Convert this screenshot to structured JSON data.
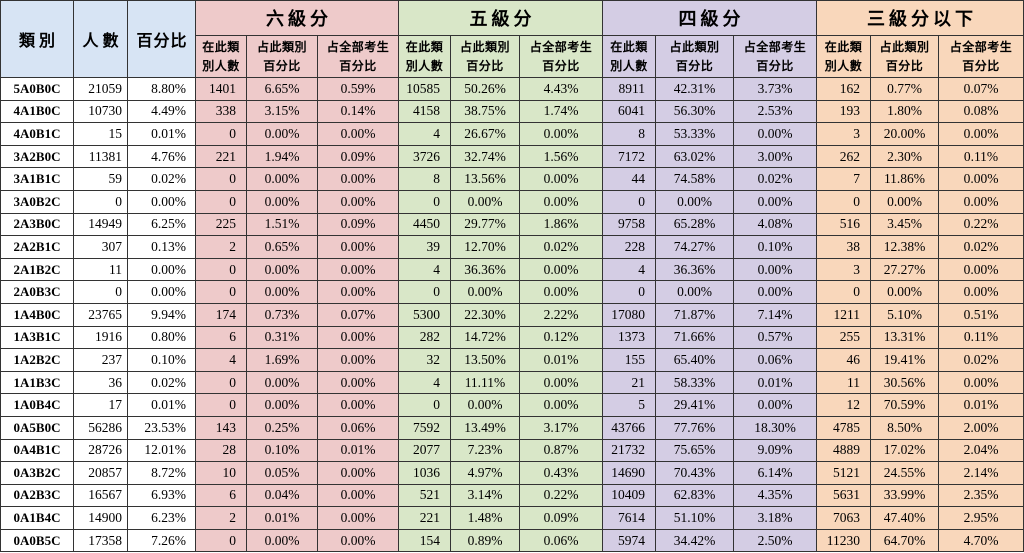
{
  "colors": {
    "header": "#d7e4f4",
    "groups": [
      "#eecaca",
      "#d9e7c8",
      "#d4cde4",
      "#f9d7bb"
    ],
    "grid_line": "#333333"
  },
  "chart_data": {
    "type": "table",
    "column_headers": {
      "category": "類別",
      "count": "人數",
      "percent": "百分比"
    },
    "groups": [
      "六級分",
      "五級分",
      "四級分",
      "三級分以下"
    ],
    "sub_headers": [
      "在此類\n別人數",
      "占此類別\n百分比",
      "占全部考生\n百分比"
    ],
    "rows": [
      {
        "category": "5A0B0C",
        "count": 21059,
        "percent": "8.80%",
        "groups": [
          [
            1401,
            "6.65%",
            "0.59%"
          ],
          [
            10585,
            "50.26%",
            "4.43%"
          ],
          [
            8911,
            "42.31%",
            "3.73%"
          ],
          [
            162,
            "0.77%",
            "0.07%"
          ]
        ]
      },
      {
        "category": "4A1B0C",
        "count": 10730,
        "percent": "4.49%",
        "groups": [
          [
            338,
            "3.15%",
            "0.14%"
          ],
          [
            4158,
            "38.75%",
            "1.74%"
          ],
          [
            6041,
            "56.30%",
            "2.53%"
          ],
          [
            193,
            "1.80%",
            "0.08%"
          ]
        ]
      },
      {
        "category": "4A0B1C",
        "count": 15,
        "percent": "0.01%",
        "groups": [
          [
            0,
            "0.00%",
            "0.00%"
          ],
          [
            4,
            "26.67%",
            "0.00%"
          ],
          [
            8,
            "53.33%",
            "0.00%"
          ],
          [
            3,
            "20.00%",
            "0.00%"
          ]
        ]
      },
      {
        "category": "3A2B0C",
        "count": 11381,
        "percent": "4.76%",
        "groups": [
          [
            221,
            "1.94%",
            "0.09%"
          ],
          [
            3726,
            "32.74%",
            "1.56%"
          ],
          [
            7172,
            "63.02%",
            "3.00%"
          ],
          [
            262,
            "2.30%",
            "0.11%"
          ]
        ]
      },
      {
        "category": "3A1B1C",
        "count": 59,
        "percent": "0.02%",
        "groups": [
          [
            0,
            "0.00%",
            "0.00%"
          ],
          [
            8,
            "13.56%",
            "0.00%"
          ],
          [
            44,
            "74.58%",
            "0.02%"
          ],
          [
            7,
            "11.86%",
            "0.00%"
          ]
        ]
      },
      {
        "category": "3A0B2C",
        "count": 0,
        "percent": "0.00%",
        "groups": [
          [
            0,
            "0.00%",
            "0.00%"
          ],
          [
            0,
            "0.00%",
            "0.00%"
          ],
          [
            0,
            "0.00%",
            "0.00%"
          ],
          [
            0,
            "0.00%",
            "0.00%"
          ]
        ]
      },
      {
        "category": "2A3B0C",
        "count": 14949,
        "percent": "6.25%",
        "groups": [
          [
            225,
            "1.51%",
            "0.09%"
          ],
          [
            4450,
            "29.77%",
            "1.86%"
          ],
          [
            9758,
            "65.28%",
            "4.08%"
          ],
          [
            516,
            "3.45%",
            "0.22%"
          ]
        ]
      },
      {
        "category": "2A2B1C",
        "count": 307,
        "percent": "0.13%",
        "groups": [
          [
            2,
            "0.65%",
            "0.00%"
          ],
          [
            39,
            "12.70%",
            "0.02%"
          ],
          [
            228,
            "74.27%",
            "0.10%"
          ],
          [
            38,
            "12.38%",
            "0.02%"
          ]
        ]
      },
      {
        "category": "2A1B2C",
        "count": 11,
        "percent": "0.00%",
        "groups": [
          [
            0,
            "0.00%",
            "0.00%"
          ],
          [
            4,
            "36.36%",
            "0.00%"
          ],
          [
            4,
            "36.36%",
            "0.00%"
          ],
          [
            3,
            "27.27%",
            "0.00%"
          ]
        ]
      },
      {
        "category": "2A0B3C",
        "count": 0,
        "percent": "0.00%",
        "groups": [
          [
            0,
            "0.00%",
            "0.00%"
          ],
          [
            0,
            "0.00%",
            "0.00%"
          ],
          [
            0,
            "0.00%",
            "0.00%"
          ],
          [
            0,
            "0.00%",
            "0.00%"
          ]
        ]
      },
      {
        "category": "1A4B0C",
        "count": 23765,
        "percent": "9.94%",
        "groups": [
          [
            174,
            "0.73%",
            "0.07%"
          ],
          [
            5300,
            "22.30%",
            "2.22%"
          ],
          [
            17080,
            "71.87%",
            "7.14%"
          ],
          [
            1211,
            "5.10%",
            "0.51%"
          ]
        ]
      },
      {
        "category": "1A3B1C",
        "count": 1916,
        "percent": "0.80%",
        "groups": [
          [
            6,
            "0.31%",
            "0.00%"
          ],
          [
            282,
            "14.72%",
            "0.12%"
          ],
          [
            1373,
            "71.66%",
            "0.57%"
          ],
          [
            255,
            "13.31%",
            "0.11%"
          ]
        ]
      },
      {
        "category": "1A2B2C",
        "count": 237,
        "percent": "0.10%",
        "groups": [
          [
            4,
            "1.69%",
            "0.00%"
          ],
          [
            32,
            "13.50%",
            "0.01%"
          ],
          [
            155,
            "65.40%",
            "0.06%"
          ],
          [
            46,
            "19.41%",
            "0.02%"
          ]
        ]
      },
      {
        "category": "1A1B3C",
        "count": 36,
        "percent": "0.02%",
        "groups": [
          [
            0,
            "0.00%",
            "0.00%"
          ],
          [
            4,
            "11.11%",
            "0.00%"
          ],
          [
            21,
            "58.33%",
            "0.01%"
          ],
          [
            11,
            "30.56%",
            "0.00%"
          ]
        ]
      },
      {
        "category": "1A0B4C",
        "count": 17,
        "percent": "0.01%",
        "groups": [
          [
            0,
            "0.00%",
            "0.00%"
          ],
          [
            0,
            "0.00%",
            "0.00%"
          ],
          [
            5,
            "29.41%",
            "0.00%"
          ],
          [
            12,
            "70.59%",
            "0.01%"
          ]
        ]
      },
      {
        "category": "0A5B0C",
        "count": 56286,
        "percent": "23.53%",
        "groups": [
          [
            143,
            "0.25%",
            "0.06%"
          ],
          [
            7592,
            "13.49%",
            "3.17%"
          ],
          [
            43766,
            "77.76%",
            "18.30%"
          ],
          [
            4785,
            "8.50%",
            "2.00%"
          ]
        ]
      },
      {
        "category": "0A4B1C",
        "count": 28726,
        "percent": "12.01%",
        "groups": [
          [
            28,
            "0.10%",
            "0.01%"
          ],
          [
            2077,
            "7.23%",
            "0.87%"
          ],
          [
            21732,
            "75.65%",
            "9.09%"
          ],
          [
            4889,
            "17.02%",
            "2.04%"
          ]
        ]
      },
      {
        "category": "0A3B2C",
        "count": 20857,
        "percent": "8.72%",
        "groups": [
          [
            10,
            "0.05%",
            "0.00%"
          ],
          [
            1036,
            "4.97%",
            "0.43%"
          ],
          [
            14690,
            "70.43%",
            "6.14%"
          ],
          [
            5121,
            "24.55%",
            "2.14%"
          ]
        ]
      },
      {
        "category": "0A2B3C",
        "count": 16567,
        "percent": "6.93%",
        "groups": [
          [
            6,
            "0.04%",
            "0.00%"
          ],
          [
            521,
            "3.14%",
            "0.22%"
          ],
          [
            10409,
            "62.83%",
            "4.35%"
          ],
          [
            5631,
            "33.99%",
            "2.35%"
          ]
        ]
      },
      {
        "category": "0A1B4C",
        "count": 14900,
        "percent": "6.23%",
        "groups": [
          [
            2,
            "0.01%",
            "0.00%"
          ],
          [
            221,
            "1.48%",
            "0.09%"
          ],
          [
            7614,
            "51.10%",
            "3.18%"
          ],
          [
            7063,
            "47.40%",
            "2.95%"
          ]
        ]
      },
      {
        "category": "0A0B5C",
        "count": 17358,
        "percent": "7.26%",
        "groups": [
          [
            0,
            "0.00%",
            "0.00%"
          ],
          [
            154,
            "0.89%",
            "0.06%"
          ],
          [
            5974,
            "34.42%",
            "2.50%"
          ],
          [
            11230,
            "64.70%",
            "4.70%"
          ]
        ]
      }
    ]
  }
}
